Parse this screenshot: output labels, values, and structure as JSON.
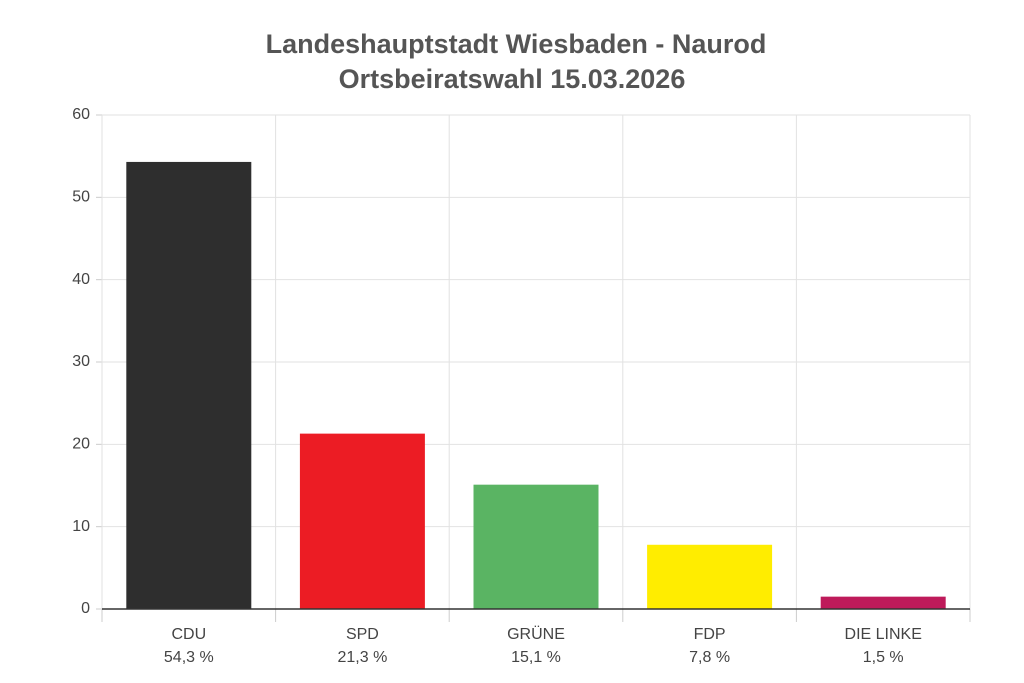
{
  "chart_data": {
    "type": "bar",
    "title": "Landeshauptstadt Wiesbaden - Naurod",
    "subtitle": "Ortsbeiratswahl 15.03.2026",
    "categories": [
      "CDU",
      "SPD",
      "GRÜNE",
      "FDP",
      "DIE LINKE"
    ],
    "values": [
      54.3,
      21.3,
      15.1,
      7.8,
      1.5
    ],
    "value_labels": [
      "54,3 %",
      "21,3 %",
      "15,1 %",
      "7,8 %",
      "1,5 %"
    ],
    "colors": [
      "#2e2e2e",
      "#ec1c24",
      "#5ab463",
      "#ffed00",
      "#be1a5a"
    ],
    "ylim": [
      0,
      60
    ],
    "yticks": [
      0,
      10,
      20,
      30,
      40,
      50,
      60
    ],
    "grid": true
  }
}
